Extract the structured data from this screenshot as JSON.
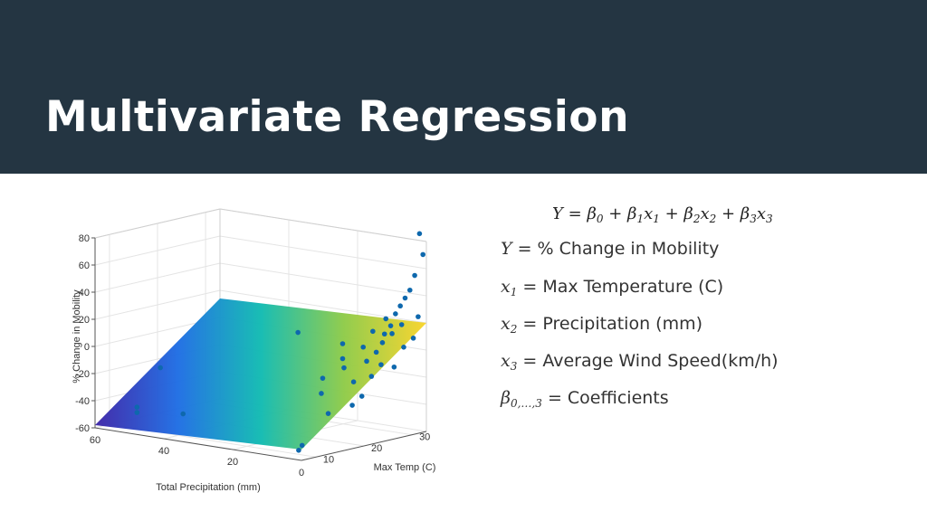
{
  "slide": {
    "title": "Multivariate Regression",
    "header_color": "#243542"
  },
  "equation": {
    "lhs": "Y",
    "equals": "=",
    "terms": [
      {
        "coef": "β",
        "coef_sub": "0",
        "var": "",
        "var_sub": ""
      },
      {
        "coef": "β",
        "coef_sub": "1",
        "var": "x",
        "var_sub": "1"
      },
      {
        "coef": "β",
        "coef_sub": "2",
        "var": "x",
        "var_sub": "2"
      },
      {
        "coef": "β",
        "coef_sub": "3",
        "var": "x",
        "var_sub": "3"
      }
    ]
  },
  "definitions": [
    {
      "var": "Y",
      "sub": "",
      "text": "= % Change in Mobility"
    },
    {
      "var": "x",
      "sub": "1",
      "text": "= Max Temperature (C)"
    },
    {
      "var": "x",
      "sub": "2",
      "text": "= Precipitation (mm)"
    },
    {
      "var": "x",
      "sub": "3",
      "text": "= Average Wind Speed(km/h)"
    },
    {
      "var": "β",
      "sub": "0,…,3",
      "text": "= Coefficients"
    }
  ],
  "chart_data": {
    "type": "scatter",
    "subtype": "3d-scatter-with-regression-plane",
    "title": "",
    "xlabel": "Max Temp (C)",
    "ylabel": "Total Precipitation (mm)",
    "zlabel": "% Change in Mobility",
    "xticks": [
      "10",
      "20",
      "30"
    ],
    "yticks": [
      "60",
      "40",
      "20",
      "0"
    ],
    "zticks": [
      "80",
      "60",
      "40",
      "20",
      "0",
      "-20",
      "-40",
      "-60"
    ],
    "xlim": [
      7,
      33
    ],
    "ylim": [
      0,
      60
    ],
    "zlim": [
      -60,
      80
    ],
    "point_color": "#0e68ad",
    "plane_colormap": "parula",
    "plane_corners": [
      {
        "temp": 7,
        "precip": 60,
        "mobility": -58
      },
      {
        "temp": 7,
        "precip": 0,
        "mobility": -52
      },
      {
        "temp": 33,
        "precip": 0,
        "mobility": 20
      },
      {
        "temp": 33,
        "precip": 60,
        "mobility": 14
      }
    ],
    "points": [
      {
        "temp": 10,
        "precip": 52,
        "mobility": -48
      },
      {
        "temp": 10,
        "precip": 52,
        "mobility": -44
      },
      {
        "temp": 12,
        "precip": 48,
        "mobility": -15
      },
      {
        "temp": 11,
        "precip": 40,
        "mobility": -45
      },
      {
        "temp": 10,
        "precip": 5,
        "mobility": -57
      },
      {
        "temp": 10,
        "precip": 4,
        "mobility": -53
      },
      {
        "temp": 12,
        "precip": 8,
        "mobility": 27
      },
      {
        "temp": 14,
        "precip": 4,
        "mobility": -18
      },
      {
        "temp": 14,
        "precip": 2,
        "mobility": -32
      },
      {
        "temp": 15,
        "precip": 5,
        "mobility": -8
      },
      {
        "temp": 17,
        "precip": 2,
        "mobility": 17
      },
      {
        "temp": 17,
        "precip": 2,
        "mobility": 6
      },
      {
        "temp": 18,
        "precip": 3,
        "mobility": -2
      },
      {
        "temp": 19,
        "precip": 2,
        "mobility": -30
      },
      {
        "temp": 20,
        "precip": 3,
        "mobility": -14
      },
      {
        "temp": 21,
        "precip": 2,
        "mobility": -25
      },
      {
        "temp": 22,
        "precip": 3,
        "mobility": 10
      },
      {
        "temp": 22,
        "precip": 2,
        "mobility": 0
      },
      {
        "temp": 23,
        "precip": 2,
        "mobility": -12
      },
      {
        "temp": 24,
        "precip": 3,
        "mobility": 20
      },
      {
        "temp": 24,
        "precip": 2,
        "mobility": 5
      },
      {
        "temp": 25,
        "precip": 1,
        "mobility": 18
      },
      {
        "temp": 25,
        "precip": 2,
        "mobility": -5
      },
      {
        "temp": 26,
        "precip": 2,
        "mobility": 28
      },
      {
        "temp": 26,
        "precip": 3,
        "mobility": 10
      },
      {
        "temp": 27,
        "precip": 2,
        "mobility": 22
      },
      {
        "temp": 27,
        "precip": 1,
        "mobility": -8
      },
      {
        "temp": 28,
        "precip": 2,
        "mobility": 30
      },
      {
        "temp": 28,
        "precip": 3,
        "mobility": 15
      },
      {
        "temp": 29,
        "precip": 2,
        "mobility": 35
      },
      {
        "temp": 29,
        "precip": 1,
        "mobility": 5
      },
      {
        "temp": 30,
        "precip": 2,
        "mobility": 40
      },
      {
        "temp": 30,
        "precip": 3,
        "mobility": 20
      },
      {
        "temp": 31,
        "precip": 2,
        "mobility": 45
      },
      {
        "temp": 31,
        "precip": 1,
        "mobility": 10
      },
      {
        "temp": 32,
        "precip": 2,
        "mobility": 55
      },
      {
        "temp": 32,
        "precip": 1,
        "mobility": 25
      },
      {
        "temp": 33,
        "precip": 1,
        "mobility": 70
      },
      {
        "temp": 33,
        "precip": 2,
        "mobility": 85
      }
    ]
  }
}
